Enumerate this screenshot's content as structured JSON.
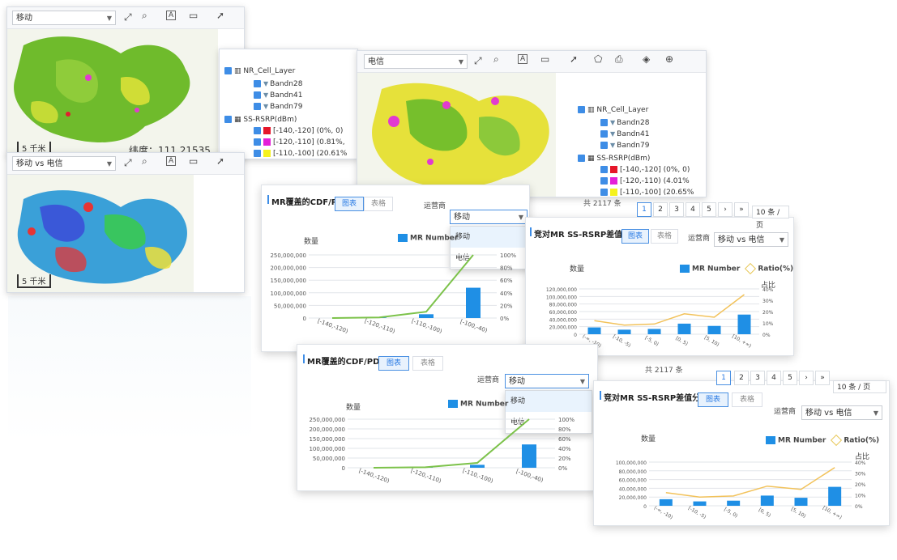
{
  "map_panel_1": {
    "operator_select": "移动",
    "scale_label": "5 千米",
    "coord_label": "纬度：111.21535"
  },
  "map_panel_2": {
    "operator_select": "移动 vs 电信",
    "scale_label": "5 千米"
  },
  "map_panel_3": {
    "operator_select": "电信"
  },
  "layer_tree": {
    "group_cell": "NR_Cell_Layer",
    "bands": [
      "Bandn28",
      "Bandn41",
      "Bandn79"
    ],
    "group_rsrp": "SS-RSRP(dBm)",
    "rsrp_items": [
      {
        "label": "[-140,-120] (0%, 0)",
        "color": "#e5162a"
      },
      {
        "label": "[-120,-110] (0.81%,",
        "color": "#e41fd9"
      },
      {
        "label": "[-110,-100] (20.61%",
        "color": "#f5f21e"
      }
    ],
    "rsrp_items_b": [
      {
        "label": "[-140,-120] (0%, 0)",
        "color": "#e5162a"
      },
      {
        "label": "[-120,-110) (4.01%",
        "color": "#e41fd9"
      },
      {
        "label": "[-110,-100] (20.65%",
        "color": "#f5f21e"
      }
    ]
  },
  "cdf_chart": {
    "title": "MR覆盖的CDF/PDF",
    "tab_chart": "图表",
    "tab_table": "表格",
    "operator_label": "运营商",
    "operator_value": "移动",
    "dropdown_options": [
      "移动",
      "电信"
    ],
    "y_axis_title": "数量",
    "legend_mr": "MR Number",
    "y_ticks": [
      "250,000,000",
      "200,000,000",
      "150,000,000",
      "100,000,000",
      "50,000,000",
      "0"
    ],
    "y2_ticks": [
      "100%",
      "80%",
      "60%",
      "40%",
      "20%",
      "0%"
    ]
  },
  "diff_chart": {
    "title": "竞对MR SS-RSRP差值分析",
    "tab_chart": "图表",
    "tab_table": "表格",
    "operator_label": "运营商",
    "operator_value": "移动 vs 电信",
    "y_axis_title": "数量",
    "legend_mr": "MR Number",
    "legend_ratio": "Ratio(%)",
    "y2_title": "占比",
    "y_ticks_a": [
      "120,000,000",
      "100,000,000",
      "80,000,000",
      "60,000,000",
      "40,000,000",
      "20,000,000",
      "0"
    ],
    "y_ticks_b": [
      "100,000,000",
      "80,000,000",
      "60,000,000",
      "40,000,000",
      "20,000,000",
      "0"
    ],
    "y2_ticks": [
      "40%",
      "30%",
      "20%",
      "10%",
      "0%"
    ]
  },
  "pager": {
    "total": "共 2117 条",
    "pages": [
      "1",
      "2",
      "3",
      "4",
      "5"
    ],
    "page_size": "10 条 / 页",
    "prev": "‹",
    "next": "›",
    "jump": "»"
  },
  "chart_data": [
    {
      "type": "bar",
      "title": "MR覆盖的CDF/PDF",
      "categories": [
        "[-140,-120)",
        "[-120,-110)",
        "[-110,-100)",
        "[-100,-40)"
      ],
      "series": [
        {
          "name": "MR Number",
          "values": [
            0,
            2000000,
            15000000,
            120000000
          ]
        }
      ],
      "line_values": [
        0,
        1,
        10,
        100
      ],
      "ylim": [
        0,
        250000000
      ],
      "y2lim": [
        0,
        100
      ]
    },
    {
      "type": "bar",
      "title": "竞对MR SS-RSRP差值分析",
      "categories": [
        "(-∞, -10)",
        "[-10, -5)",
        "[-5, 0)",
        "[0, 5)",
        "[5, 10)",
        "[10, +∞)"
      ],
      "series": [
        {
          "name": "MR Number",
          "values": [
            18000000,
            12000000,
            14000000,
            28000000,
            22000000,
            52000000
          ]
        }
      ],
      "line_series": {
        "name": "Ratio(%)",
        "values": [
          12,
          8,
          9,
          18,
          15,
          35
        ]
      },
      "ylim": [
        0,
        120000000
      ],
      "y2lim": [
        0,
        40
      ]
    }
  ]
}
